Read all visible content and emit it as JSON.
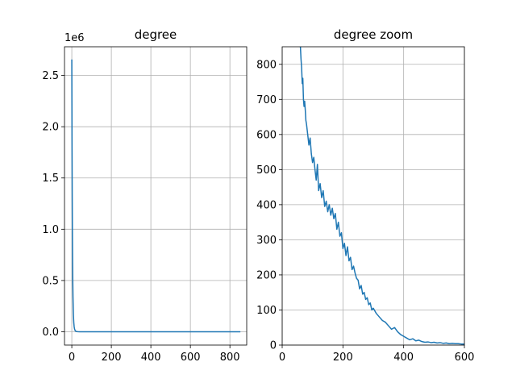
{
  "chart_data": [
    {
      "type": "line",
      "title": "degree",
      "xlabel": "",
      "ylabel": "",
      "xlim": [
        -37,
        885
      ],
      "ylim": [
        -130000,
        2780000
      ],
      "x_ticks": [
        0,
        200,
        400,
        600,
        800
      ],
      "y_ticks": [
        0,
        500000,
        1000000,
        1500000,
        2000000,
        2500000
      ],
      "x_tick_labels": [
        "0",
        "200",
        "400",
        "600",
        "800"
      ],
      "y_tick_labels": [
        "0.0",
        "0.5",
        "1.0",
        "1.5",
        "2.0",
        "2.5"
      ],
      "offset_text": "1e6",
      "grid": true,
      "color": "#1f77b4",
      "series": [
        {
          "x": [
            0,
            1,
            2,
            3,
            4,
            5,
            6,
            7,
            8,
            9,
            10,
            12,
            14,
            16,
            18,
            20,
            25,
            30,
            40,
            60,
            100,
            200,
            400,
            600,
            850
          ],
          "y": [
            2650000,
            1900000,
            1350000,
            950000,
            680000,
            480000,
            340000,
            245000,
            175000,
            126000,
            90000,
            47000,
            26000,
            15000,
            9000,
            5500,
            1800,
            700,
            150,
            10,
            0,
            0,
            0,
            0,
            0
          ]
        }
      ]
    },
    {
      "type": "line",
      "title": "degree zoom",
      "xlabel": "",
      "ylabel": "",
      "xlim": [
        0,
        600
      ],
      "ylim": [
        0,
        850
      ],
      "x_ticks": [
        0,
        200,
        400,
        600
      ],
      "y_ticks": [
        0,
        100,
        200,
        300,
        400,
        500,
        600,
        700,
        800
      ],
      "x_tick_labels": [
        "0",
        "200",
        "400",
        "600"
      ],
      "y_tick_labels": [
        "0",
        "100",
        "200",
        "300",
        "400",
        "500",
        "600",
        "700",
        "800"
      ],
      "grid": true,
      "color": "#1f77b4",
      "series": [
        {
          "x": [
            60,
            62,
            64,
            66,
            68,
            70,
            72,
            74,
            76,
            78,
            80,
            84,
            88,
            92,
            96,
            100,
            104,
            108,
            112,
            116,
            120,
            125,
            130,
            135,
            140,
            145,
            150,
            155,
            160,
            165,
            170,
            175,
            180,
            185,
            190,
            195,
            200,
            205,
            210,
            215,
            220,
            225,
            230,
            235,
            240,
            245,
            250,
            255,
            260,
            265,
            270,
            275,
            280,
            285,
            290,
            295,
            300,
            310,
            320,
            330,
            340,
            350,
            360,
            370,
            380,
            390,
            400,
            410,
            420,
            430,
            440,
            450,
            460,
            470,
            480,
            490,
            500,
            510,
            520,
            530,
            540,
            550,
            560,
            570,
            580,
            590,
            600
          ],
          "y": [
            850,
            815,
            790,
            745,
            760,
            700,
            680,
            695,
            670,
            640,
            630,
            600,
            570,
            590,
            545,
            520,
            535,
            500,
            470,
            515,
            440,
            460,
            420,
            440,
            395,
            410,
            380,
            400,
            370,
            390,
            360,
            375,
            330,
            350,
            310,
            320,
            275,
            290,
            255,
            280,
            240,
            250,
            215,
            225,
            205,
            190,
            185,
            160,
            170,
            145,
            150,
            130,
            135,
            115,
            120,
            100,
            105,
            90,
            80,
            70,
            65,
            55,
            45,
            50,
            38,
            30,
            25,
            20,
            15,
            18,
            12,
            14,
            10,
            8,
            9,
            7,
            8,
            6,
            7,
            5,
            6,
            4,
            5,
            4,
            4,
            3,
            3
          ]
        }
      ]
    }
  ]
}
